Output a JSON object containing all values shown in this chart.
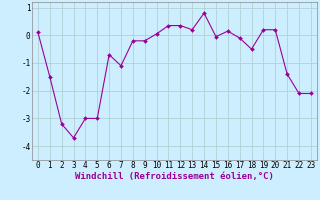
{
  "x": [
    0,
    1,
    2,
    3,
    4,
    5,
    6,
    7,
    8,
    9,
    10,
    11,
    12,
    13,
    14,
    15,
    16,
    17,
    18,
    19,
    20,
    21,
    22,
    23
  ],
  "y": [
    0.1,
    -1.5,
    -3.2,
    -3.7,
    -3.0,
    -3.0,
    -0.7,
    -1.1,
    -0.2,
    -0.2,
    0.05,
    0.35,
    0.35,
    0.2,
    0.8,
    -0.05,
    0.15,
    -0.1,
    -0.5,
    0.2,
    0.2,
    -1.4,
    -2.1,
    -2.1
  ],
  "line_color": "#990099",
  "marker": "D",
  "marker_size": 2.0,
  "bg_color": "#cceeff",
  "grid_color": "#aacccc",
  "ylim": [
    -4.5,
    1.2
  ],
  "xlim": [
    -0.5,
    23.5
  ],
  "yticks": [
    -4,
    -3,
    -2,
    -1,
    0,
    1
  ],
  "xticks": [
    0,
    1,
    2,
    3,
    4,
    5,
    6,
    7,
    8,
    9,
    10,
    11,
    12,
    13,
    14,
    15,
    16,
    17,
    18,
    19,
    20,
    21,
    22,
    23
  ],
  "xlabel": "Windchill (Refroidissement éolien,°C)",
  "xlabel_fontsize": 6.5,
  "tick_fontsize": 5.5
}
